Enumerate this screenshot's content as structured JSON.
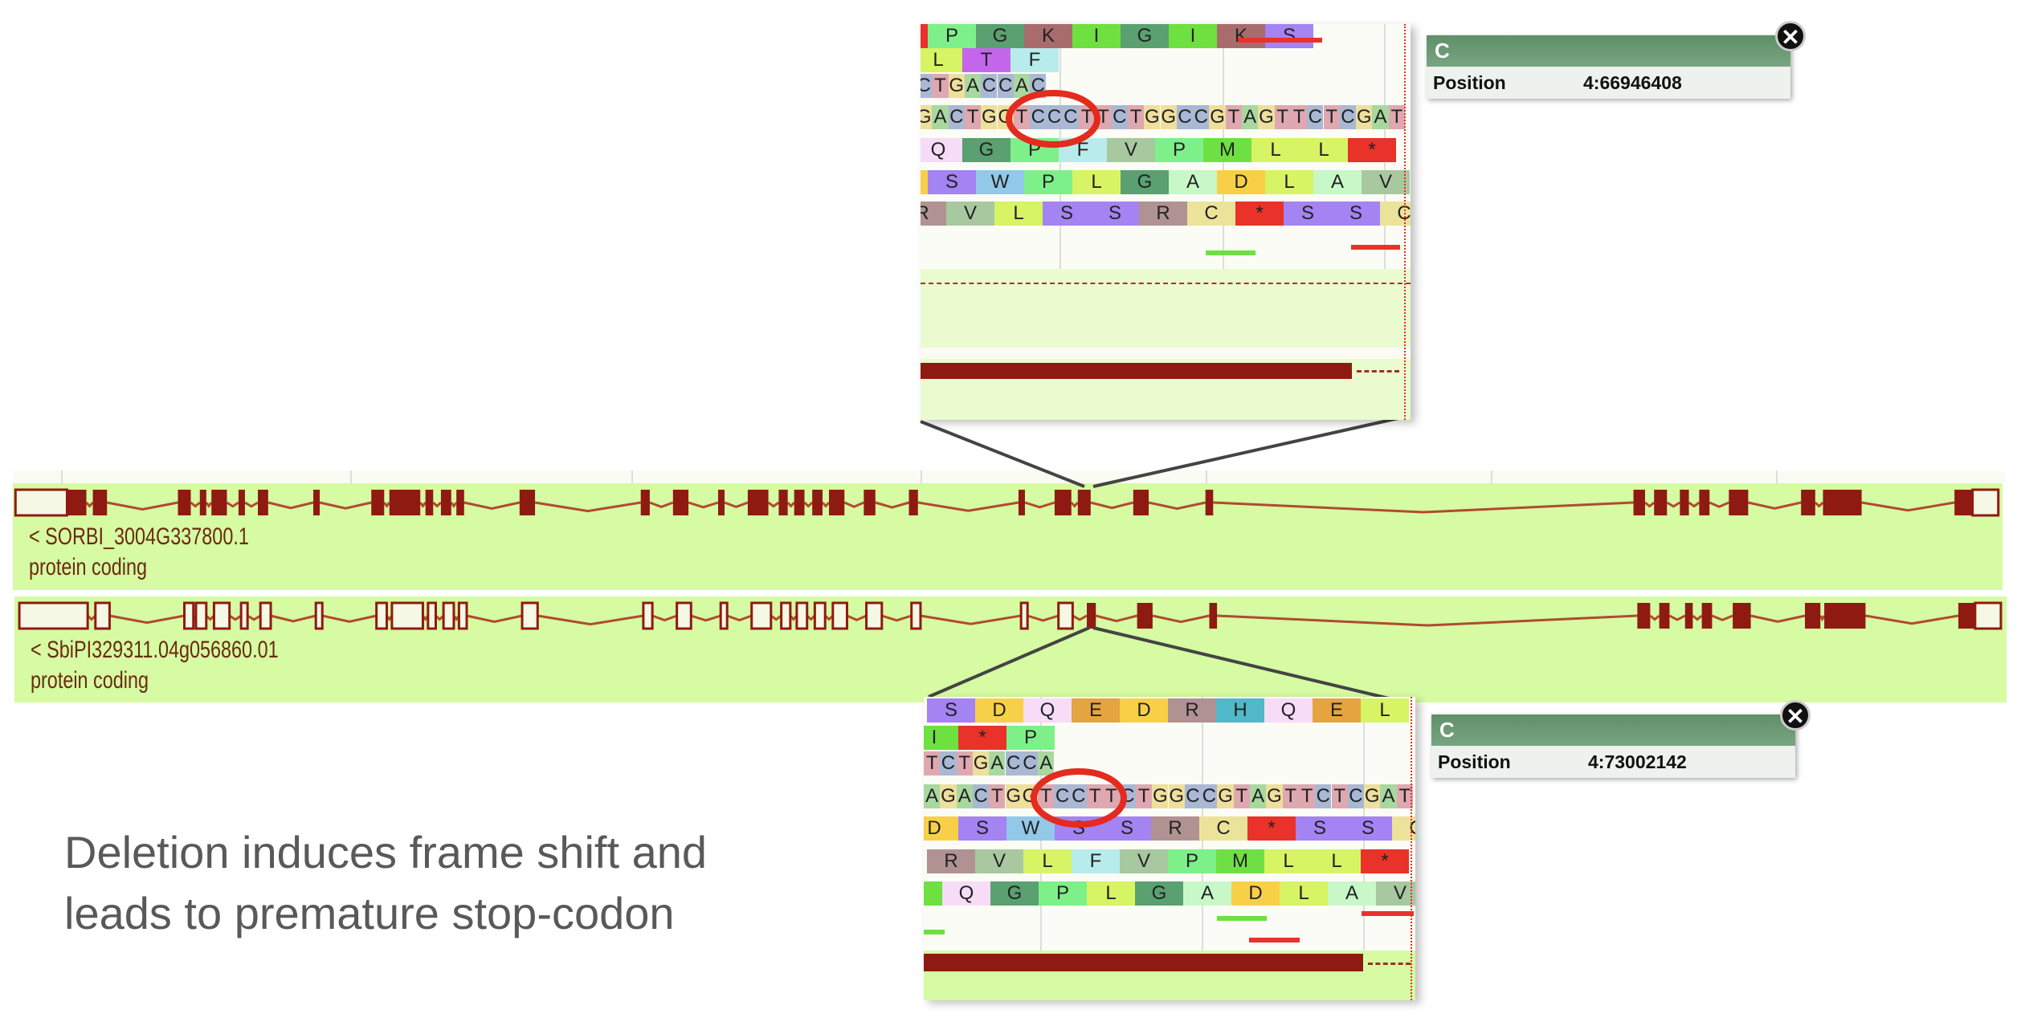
{
  "colors": {
    "track_bg": "#d6fba2",
    "exon": "#8f1a12",
    "intron": "#b04a30",
    "nt": {
      "A": "#a8d8a0",
      "C": "#a9b8d4",
      "G": "#efdf9c",
      "T": "#dfa8b0"
    },
    "aa": {
      "*": "#e8322a",
      "P": "#7ef08a",
      "G": "#5aa070",
      "K": "#a86c6c",
      "I": "#6ee040",
      "S": "#a483f2",
      "L": "#d6f464",
      "T": "#c466ec",
      "F": "#b8ecec",
      "V": "#a8c8a0",
      "M": "#6ee044",
      "W": "#92c8e8",
      "A": "#c8f8c8",
      "D": "#f8d048",
      "R": "#b09292",
      "C": "#ece39a",
      "Q": "#f6dcf6",
      "E": "#e4a440",
      "H": "#50b8c8"
    },
    "highlight_circle": "#e52a1e"
  },
  "tracks": [
    {
      "id": "< SORBI_3004G337800.1",
      "biotype": "protein coding"
    },
    {
      "id": "< SbiPI329311.04g056860.01",
      "biotype": "protein coding"
    }
  ],
  "insets": [
    {
      "rows": [
        [
          "*",
          "P",
          "G",
          "K",
          "I",
          "G",
          "I",
          "K",
          "S"
        ],
        [
          "L",
          "T",
          "F"
        ],
        "CTGACCAC",
        "GACTGGTCCCTTCTGGCCGTAGTTCTCGAT",
        [
          "Q",
          "G",
          "P",
          "F",
          "V",
          "P",
          "M",
          "L",
          "L",
          "*"
        ],
        [
          "D",
          "S",
          "W",
          "P",
          "L",
          "G",
          "A",
          "D",
          "L",
          "A",
          "V"
        ],
        [
          "R",
          "V",
          "L",
          "S",
          "S",
          "R",
          "C",
          "*",
          "S",
          "S",
          "C"
        ]
      ],
      "tooltip": {
        "title": "C",
        "label": "Position",
        "value": "4:66946408"
      },
      "close_icon": "close-icon"
    },
    {
      "rows": [
        [
          "S",
          "D",
          "Q",
          "E",
          "D",
          "R",
          "H",
          "Q",
          "E",
          "L"
        ],
        [
          "I",
          "*",
          "P"
        ],
        "TCTGACCA",
        "AGACTGGTCCTTCTGGCCGTAGTTCTCGAT",
        [
          "D",
          "S",
          "W",
          "S",
          "S",
          "R",
          "C",
          "*",
          "S",
          "S",
          "C"
        ],
        [
          "R",
          "V",
          "L",
          "F",
          "V",
          "P",
          "M",
          "L",
          "L",
          "*"
        ],
        [
          "I",
          "Q",
          "G",
          "P",
          "L",
          "G",
          "A",
          "D",
          "L",
          "A",
          "V"
        ]
      ],
      "tooltip": {
        "title": "C",
        "label": "Position",
        "value": "4:73002142"
      },
      "close_icon": "close-icon"
    }
  ],
  "caption": {
    "line1": "Deletion induces frame shift and",
    "line2": "leads to premature stop-codon"
  }
}
